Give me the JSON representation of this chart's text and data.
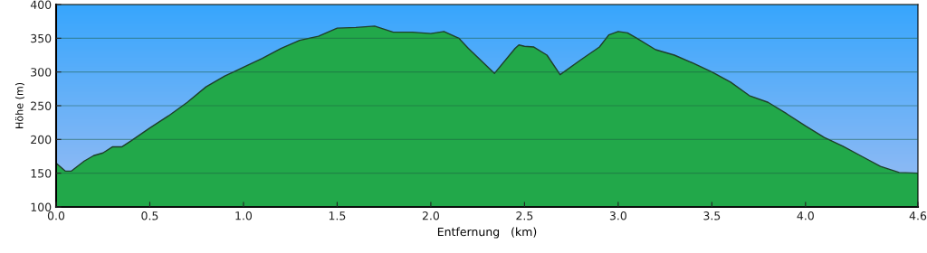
{
  "chart_data": {
    "type": "area",
    "xlabel": "Entfernung   (km)",
    "ylabel": "Höhe (m)",
    "x": [
      0.0,
      0.05,
      0.08,
      0.15,
      0.2,
      0.25,
      0.3,
      0.35,
      0.4,
      0.5,
      0.6,
      0.7,
      0.8,
      0.9,
      1.0,
      1.1,
      1.2,
      1.3,
      1.4,
      1.5,
      1.6,
      1.7,
      1.8,
      1.9,
      2.0,
      2.07,
      2.15,
      2.2,
      2.34,
      2.45,
      2.47,
      2.5,
      2.55,
      2.62,
      2.69,
      2.8,
      2.9,
      2.95,
      3.0,
      3.05,
      3.1,
      3.2,
      3.3,
      3.4,
      3.5,
      3.6,
      3.7,
      3.8,
      3.9,
      4.0,
      4.1,
      4.2,
      4.3,
      4.4,
      4.5,
      4.6
    ],
    "series": [
      {
        "color": "#22a84a",
        "values": [
          165,
          153,
          153,
          168,
          176,
          180,
          189,
          189,
          198,
          217,
          235,
          255,
          278,
          294,
          307,
          320,
          335,
          347,
          353,
          365,
          366,
          368,
          359,
          359,
          357,
          360,
          350,
          335,
          298,
          335,
          340,
          338,
          337,
          325,
          296,
          318,
          337,
          355,
          360,
          358,
          350,
          333,
          325,
          313,
          300,
          285,
          265,
          255,
          238,
          220,
          203,
          190,
          175,
          160,
          151,
          150
        ]
      }
    ],
    "xlim": [
      0,
      4.6
    ],
    "xticks": [
      {
        "value": 0,
        "label": "0.0"
      },
      0.5,
      {
        "value": 1,
        "label": "1.0"
      },
      1.5,
      {
        "value": 2,
        "label": "2.0"
      },
      2.5,
      {
        "value": 3,
        "label": "3.0"
      },
      3.5,
      {
        "value": 4,
        "label": "4.0"
      },
      4.6
    ],
    "ylim": [
      100,
      400
    ],
    "yticks": [
      100,
      150,
      200,
      250,
      300,
      350,
      400
    ],
    "grid": "y"
  }
}
